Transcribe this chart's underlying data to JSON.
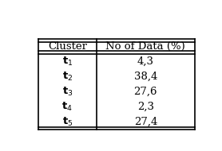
{
  "col_headers": [
    "Cluster",
    "No of Data (%)"
  ],
  "cluster_col": [
    "$\\mathbf{t}_1$",
    "$\\mathbf{t}_2$",
    "$\\mathbf{t}_3$",
    "$\\mathbf{t}_4$",
    "$\\mathbf{t}_5$"
  ],
  "data_col": [
    "4,3",
    "38,4",
    "27,6",
    "2,3",
    "27,4"
  ],
  "background_color": "#ffffff",
  "border_color": "#000000",
  "font_size": 9.5,
  "header_font_size": 9.5
}
